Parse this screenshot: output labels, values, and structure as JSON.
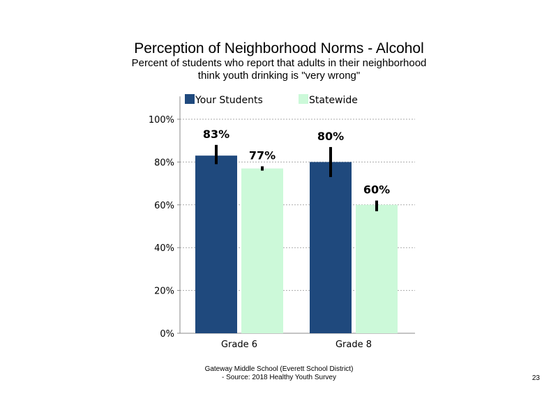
{
  "slide": {
    "footer_line1": "Gateway Middle School (Everett School District)",
    "footer_line2": "- Source: 2018 Healthy Youth Survey",
    "page_number": "23"
  },
  "chart_data": {
    "type": "bar",
    "title": "Perception of Neighborhood Norms - Alcohol",
    "subtitle_line1": "Percent of students who report that adults in their neighborhood",
    "subtitle_line2": "think youth drinking is \"very wrong\"",
    "categories": [
      "Grade 6",
      "Grade 8"
    ],
    "series": [
      {
        "name": "Your Students",
        "values": [
          83,
          80
        ],
        "labels": [
          "83%",
          "80%"
        ],
        "error": [
          [
            79,
            88
          ],
          [
            73,
            87
          ]
        ],
        "color": "#1f497d"
      },
      {
        "name": "Statewide",
        "values": [
          77,
          60
        ],
        "labels": [
          "77%",
          "60%"
        ],
        "error": [
          [
            76,
            78
          ],
          [
            57,
            62
          ]
        ],
        "color": "#ccf9d9"
      }
    ],
    "yticks": [
      "0%",
      "20%",
      "40%",
      "60%",
      "80%",
      "100%"
    ],
    "ylim": [
      0,
      110
    ],
    "grid": true,
    "legend_position": "top",
    "error_bar_color": "#000000",
    "gridline_color": "#aaaaaa"
  }
}
